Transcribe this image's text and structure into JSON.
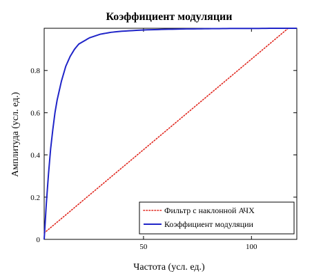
{
  "chart_data": {
    "type": "line",
    "title": "Коэффициент модуляции",
    "xlabel": "Частота (усл. ед.)",
    "ylabel": "Амплитуда (усл. ед.)",
    "xlim": [
      4,
      121
    ],
    "ylim": [
      0,
      1
    ],
    "x_ticks": [
      50,
      100
    ],
    "x_tick_labels": [
      "50",
      "100"
    ],
    "y_ticks": [
      0,
      0.2,
      0.4,
      0.6,
      0.8
    ],
    "y_tick_labels": [
      "0",
      "0.2",
      "0.4",
      "0.6",
      "0.8"
    ],
    "grid": false,
    "legend_position": "bottom-right",
    "series": [
      {
        "name": "Фильтр с наклонной АЧХ",
        "color": "#e0251c",
        "style": "dotted",
        "x": [
          4,
          117
        ],
        "y": [
          0.03,
          1.0
        ]
      },
      {
        "name": "Коэффициент модуляции",
        "color": "#1f24c8",
        "style": "solid",
        "x": [
          4,
          5,
          6,
          7,
          8,
          9,
          10,
          12,
          14,
          16,
          18,
          20,
          25,
          30,
          35,
          40,
          50,
          60,
          70,
          80,
          90,
          100,
          110,
          121
        ],
        "y": [
          0.0,
          0.17,
          0.31,
          0.43,
          0.52,
          0.6,
          0.66,
          0.75,
          0.82,
          0.866,
          0.9,
          0.925,
          0.955,
          0.972,
          0.981,
          0.986,
          0.992,
          0.995,
          0.997,
          0.998,
          0.999,
          0.999,
          1.0,
          1.0
        ]
      }
    ]
  }
}
